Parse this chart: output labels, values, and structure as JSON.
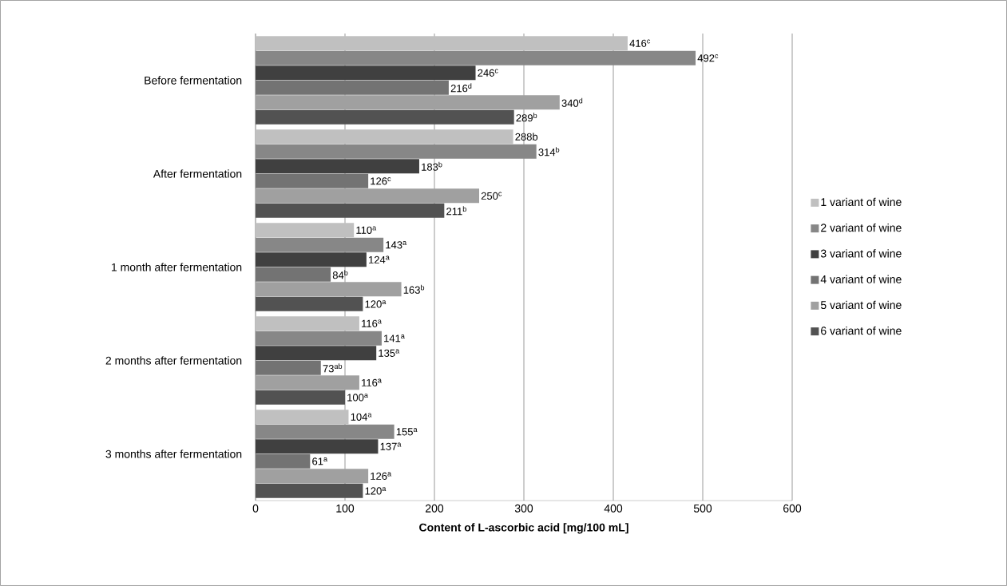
{
  "chart_data": {
    "type": "bar",
    "orientation": "horizontal",
    "xlabel": "Content of L-ascorbic acid [mg/100 mL]",
    "categories": [
      "Before fermentation",
      "After fermentation",
      "1 month after fermentation",
      "2 months after fermentation",
      "3 months after fermentation"
    ],
    "xlim": [
      0,
      600
    ],
    "xticks": [
      0,
      100,
      200,
      300,
      400,
      500,
      600
    ],
    "grid": "x",
    "legend": "right",
    "series": [
      {
        "name": "1 variant of wine",
        "color": "#c0c0c0",
        "values": [
          416,
          288,
          110,
          116,
          104
        ],
        "value_labels": [
          "416$^{c}$",
          "288b",
          "110$^{a}$",
          "116$^{a}$",
          "104$^{a}$"
        ]
      },
      {
        "name": "2 variant of wine",
        "color": "#878787",
        "values": [
          492,
          314,
          143,
          141,
          155
        ],
        "value_labels": [
          "492$^{c}$",
          "314$^{b}$",
          "143$^{a}$",
          "141$^{a}$",
          "155$^{a}$"
        ]
      },
      {
        "name": "3 variant of wine",
        "color": "#404040",
        "values": [
          246,
          183,
          124,
          135,
          137
        ],
        "value_labels": [
          "246$^{c}$",
          "183$^{b}$",
          "124$^{a}$",
          "135$^{a}$",
          "137$^{a}$"
        ]
      },
      {
        "name": "4 variant of wine",
        "color": "#737373",
        "values": [
          216,
          126,
          84,
          73,
          61
        ],
        "value_labels": [
          "216$^{d}$",
          "126$^{c}$",
          "84$^{b}$",
          "73$^{ab}$",
          "61$^{a}$"
        ]
      },
      {
        "name": "5 variant of wine",
        "color": "#a0a0a0",
        "values": [
          340,
          250,
          163,
          116,
          126
        ],
        "value_labels": [
          "340$^{d}$",
          "250$^{c}$",
          "163$^{b}$",
          "116$^{a}$",
          "126$^{a}$"
        ]
      },
      {
        "name": "6 variant of wine",
        "color": "#525252",
        "values": [
          289,
          211,
          120,
          100,
          120
        ],
        "value_labels": [
          "289$^{b}$",
          "211$^{b}$",
          "120$^{a}$",
          "100$^{a}$",
          "120$^{a}$"
        ]
      }
    ]
  }
}
